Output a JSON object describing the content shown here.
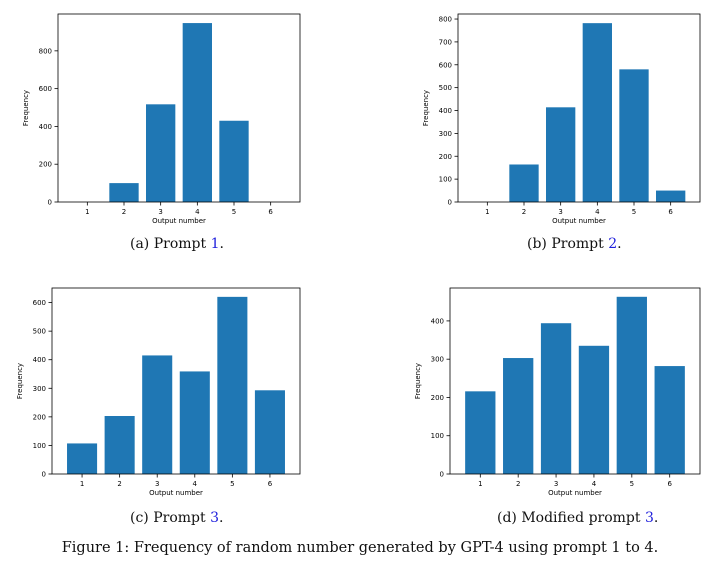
{
  "chart_data": [
    {
      "type": "bar",
      "panel": "a",
      "categories": [
        "1",
        "2",
        "3",
        "4",
        "5",
        "6"
      ],
      "values": [
        0,
        100,
        517,
        947,
        430,
        0
      ],
      "xlabel": "Output number",
      "ylabel": "Frequency",
      "yticks": [
        0,
        200,
        400,
        600,
        800
      ],
      "ylim": [
        0,
        995
      ],
      "color": "#1f77b4",
      "caption": {
        "prefix": "(a) Prompt ",
        "ref": "1",
        "suffix": "."
      }
    },
    {
      "type": "bar",
      "panel": "b",
      "categories": [
        "1",
        "2",
        "3",
        "4",
        "5",
        "6"
      ],
      "values": [
        0,
        164,
        414,
        782,
        580,
        50
      ],
      "xlabel": "Output number",
      "ylabel": "Frequency",
      "yticks": [
        0,
        100,
        200,
        300,
        400,
        500,
        600,
        700,
        800
      ],
      "ylim": [
        0,
        822
      ],
      "color": "#1f77b4",
      "caption": {
        "prefix": "(b) Prompt ",
        "ref": "2",
        "suffix": "."
      }
    },
    {
      "type": "bar",
      "panel": "c",
      "categories": [
        "1",
        "2",
        "3",
        "4",
        "5",
        "6"
      ],
      "values": [
        107,
        203,
        415,
        359,
        620,
        293
      ],
      "xlabel": "Output number",
      "ylabel": "Frequency",
      "yticks": [
        0,
        100,
        200,
        300,
        400,
        500,
        600
      ],
      "ylim": [
        0,
        651
      ],
      "color": "#1f77b4",
      "caption": {
        "prefix": "(c) Prompt ",
        "ref": "3",
        "suffix": "."
      }
    },
    {
      "type": "bar",
      "panel": "d",
      "categories": [
        "1",
        "2",
        "3",
        "4",
        "5",
        "6"
      ],
      "values": [
        216,
        303,
        394,
        335,
        463,
        282
      ],
      "xlabel": "Output number",
      "ylabel": "Frequency",
      "yticks": [
        0,
        100,
        200,
        300,
        400
      ],
      "ylim": [
        0,
        486
      ],
      "color": "#1f77b4",
      "caption": {
        "prefix": "(d) Modified prompt ",
        "ref": "3",
        "suffix": "."
      }
    }
  ],
  "figure_caption": "Figure 1: Frequency of random number generated by GPT-4 using prompt 1 to 4."
}
